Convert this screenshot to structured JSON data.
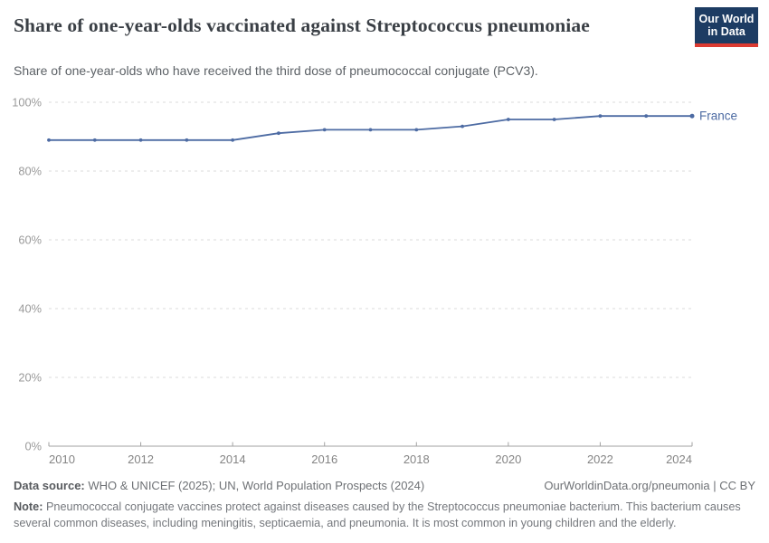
{
  "header": {
    "title": "Share of one-year-olds vaccinated against Streptococcus pneumoniae",
    "subtitle": "Share of one-year-olds who have received the third dose of pneumococcal conjugate (PCV3)."
  },
  "logo": {
    "line1": "Our World",
    "line2": "in Data",
    "bg_color": "#1d3c63",
    "accent_color": "#dc3b32"
  },
  "chart_data": {
    "type": "line",
    "title": "Share of one-year-olds vaccinated against Streptococcus pneumoniae",
    "x": [
      2010,
      2011,
      2012,
      2013,
      2014,
      2015,
      2016,
      2017,
      2018,
      2019,
      2020,
      2021,
      2022,
      2023,
      2024
    ],
    "series": [
      {
        "name": "France",
        "values": [
          89,
          89,
          89,
          89,
          89,
          91,
          92,
          92,
          92,
          93,
          95,
          95,
          96,
          96,
          96
        ],
        "color": "#4d6ba3"
      }
    ],
    "ylim": [
      0,
      100
    ],
    "yticks": [
      0,
      20,
      40,
      60,
      80,
      100
    ],
    "ytick_labels": [
      "0%",
      "20%",
      "40%",
      "60%",
      "80%",
      "100%"
    ],
    "xticks": [
      2010,
      2012,
      2014,
      2016,
      2018,
      2020,
      2022,
      2024
    ],
    "xtick_labels": [
      "2010",
      "2012",
      "2014",
      "2016",
      "2018",
      "2020",
      "2022",
      "2024"
    ],
    "grid": "horizontal dashed",
    "legend_position": "end-of-line label",
    "style": {
      "grid_color": "#dbdbdb",
      "axis_color": "#a2a2a2",
      "ytick_color": "#9a9a9a",
      "xtick_color": "#848484"
    }
  },
  "footer": {
    "data_source_label": "Data source:",
    "data_source_text": "WHO & UNICEF (2025); UN, World Population Prospects (2024)",
    "attribution": "OurWorldinData.org/pneumonia | CC BY",
    "note_label": "Note:",
    "note_text": "Pneumococcal conjugate vaccines protect against diseases caused by the Streptococcus pneumoniae bacterium. This bacterium causes several common diseases, including meningitis, septicaemia, and pneumonia. It is most common in young children and the elderly."
  }
}
